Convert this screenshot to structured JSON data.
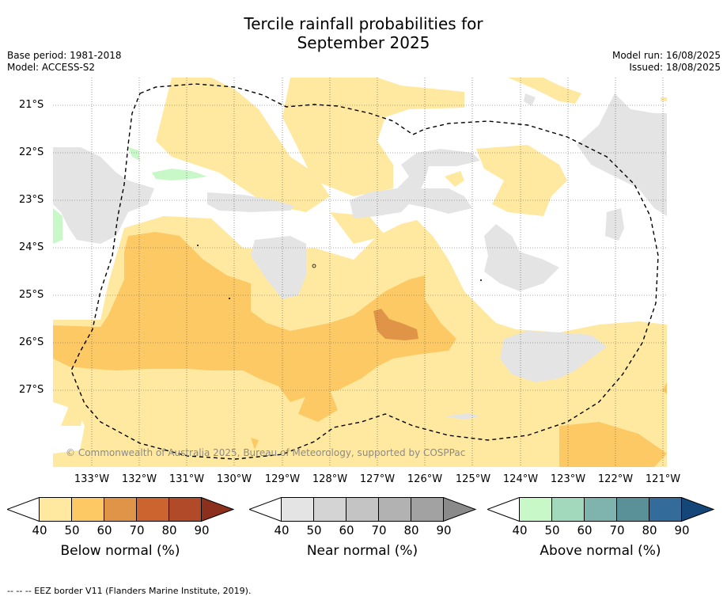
{
  "title_line1": "Tercile rainfall probabilities for",
  "title_line2": "September 2025",
  "meta_left": {
    "base_period": "Base period: 1981-2018",
    "model": "Model: ACCESS-S2"
  },
  "meta_right": {
    "model_run": "Model run: 16/08/2025",
    "issued": "Issued: 18/08/2025"
  },
  "lat_labels": [
    "21°S",
    "22°S",
    "23°S",
    "24°S",
    "25°S",
    "26°S",
    "27°S"
  ],
  "lon_labels": [
    "133°W",
    "132°W",
    "131°W",
    "130°W",
    "129°W",
    "128°W",
    "127°W",
    "126°W",
    "125°W",
    "124°W",
    "123°W",
    "122°W",
    "121°W"
  ],
  "copyright": "© Commonwealth of Australia 2025, Bureau of Meteorology, supported by COSPPac",
  "colorbars": [
    {
      "title": "Below normal (%)",
      "ticks": [
        "40",
        "50",
        "60",
        "70",
        "80",
        "90"
      ],
      "colors": [
        "#ffe9a0",
        "#fdc964",
        "#e09447",
        "#cc6430",
        "#b04a28",
        "#8c2f1c"
      ]
    },
    {
      "title": "Near normal (%)",
      "ticks": [
        "40",
        "50",
        "60",
        "70",
        "80",
        "90"
      ],
      "colors": [
        "#e4e4e4",
        "#d4d4d4",
        "#c4c4c4",
        "#b2b2b2",
        "#a2a2a2",
        "#8a8a8a"
      ]
    },
    {
      "title": "Above normal (%)",
      "ticks": [
        "40",
        "50",
        "60",
        "70",
        "80",
        "90"
      ],
      "colors": [
        "#c8f8c8",
        "#a2d8bc",
        "#7fb4ae",
        "#5a9098",
        "#336c9a",
        "#14467a"
      ]
    }
  ],
  "footnote": "--  --  -- EEZ border V11 (Flanders Marine Institute, 2019)."
}
